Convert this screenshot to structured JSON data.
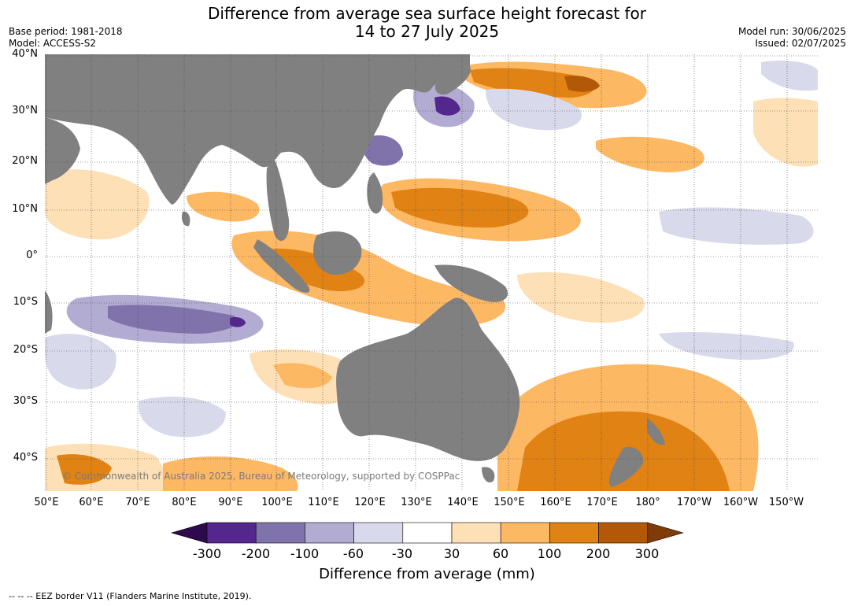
{
  "title": {
    "line1": "Difference from average sea surface height forecast for",
    "line2": "14 to 27 July 2025"
  },
  "meta": {
    "base_period": "Base period: 1981-2018",
    "model": "Model: ACCESS-S2",
    "model_run": "Model run: 30/06/2025",
    "issued": "Issued: 02/07/2025"
  },
  "map": {
    "lat_ticks": [
      "40°N",
      "30°N",
      "20°N",
      "10°N",
      "0°",
      "10°S",
      "20°S",
      "30°S",
      "40°S"
    ],
    "lon_ticks": [
      "50°E",
      "60°E",
      "70°E",
      "80°E",
      "90°E",
      "100°E",
      "110°E",
      "120°E",
      "130°E",
      "140°E",
      "150°E",
      "160°E",
      "170°E",
      "180°",
      "170°W",
      "160°W",
      "150°W"
    ],
    "copyright": "© Commonwealth of Australia 2025, Bureau of Meteorology, supported by COSPPac",
    "land_color": "#808080"
  },
  "colorbar": {
    "label": "Difference from average (mm)",
    "ticks": [
      "-300",
      "-200",
      "-100",
      "-60",
      "-30",
      "30",
      "60",
      "100",
      "200",
      "300"
    ],
    "colors": [
      "#2d0a4e",
      "#54278f",
      "#8073ac",
      "#b2abd2",
      "#d8daeb",
      "#ffffff",
      "#fee0b6",
      "#fdb863",
      "#e08214",
      "#b35806",
      "#7f3b08"
    ]
  },
  "footer": {
    "eez_note": "--  --  -- EEZ border V11 (Flanders Marine Institute, 2019)."
  }
}
